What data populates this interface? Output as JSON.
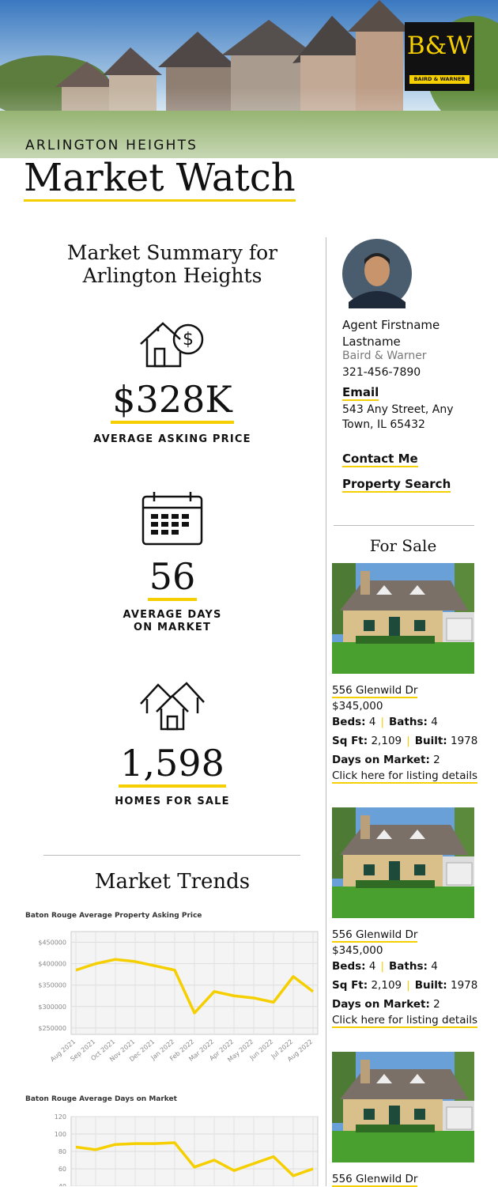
{
  "header": {
    "logo": "B&W",
    "logo_sub": "BAIRD & WARNER",
    "subtitle": "ARLINGTON HEIGHTS",
    "title": "Market Watch"
  },
  "summary": {
    "title": "Market Summary for Arlington Heights",
    "stats": [
      {
        "value": "$328K",
        "label": "AVERAGE ASKING PRICE"
      },
      {
        "value": "56",
        "label": "AVERAGE DAYS ON MARKET"
      },
      {
        "value": "1,598",
        "label": "HOMES FOR SALE"
      }
    ]
  },
  "trends_title": "Market Trends",
  "chart_data": [
    {
      "type": "line",
      "title": "Baton Rouge Average Property Asking Price",
      "categories": [
        "Aug 2021",
        "Sep 2021",
        "Oct 2021",
        "Nov 2021",
        "Dec 2021",
        "Jan 2022",
        "Feb 2022",
        "Mar 2022",
        "Apr 2022",
        "May 2022",
        "Jun 2022",
        "Jul 2022",
        "Aug 2022"
      ],
      "values": [
        385000,
        400000,
        410000,
        405000,
        395000,
        385000,
        285000,
        335000,
        325000,
        320000,
        310000,
        370000,
        335000
      ],
      "color": "#f5cf00",
      "ylim": [
        235000,
        475000
      ],
      "yticks": [
        {
          "value": 250000,
          "label": "$250000"
        },
        {
          "value": 300000,
          "label": "$300000"
        },
        {
          "value": 350000,
          "label": "$350000"
        },
        {
          "value": 400000,
          "label": "$400000"
        },
        {
          "value": 450000,
          "label": "$450000"
        }
      ],
      "grid": true
    },
    {
      "type": "line",
      "title": "Baton Rouge Average Days on Market",
      "categories": [
        null,
        null,
        null,
        null,
        null,
        null,
        null,
        null,
        null,
        null,
        null,
        null,
        null
      ],
      "values": [
        85,
        82,
        88,
        89,
        89,
        90,
        62,
        70,
        58,
        66,
        74,
        52,
        60
      ],
      "color": "#f5cf00",
      "ylim": [
        40,
        120
      ],
      "yticks": [
        40,
        60,
        80,
        100,
        120
      ],
      "grid": true
    }
  ],
  "agent": {
    "name": "Agent Firstname Lastname",
    "company": "Baird & Warner",
    "phone": "321-456-7890",
    "email": "Email",
    "address": "543 Any Street, Any Town, IL 65432",
    "links": [
      "Contact Me",
      "Property Search"
    ]
  },
  "for_sale": {
    "title": "For Sale",
    "listings": [
      {
        "address": "556 Glenwild Dr",
        "price": "$345,000",
        "beds_label": "Beds:",
        "beds": "4",
        "baths_label": "Baths:",
        "baths": "4",
        "sqft_label": "Sq Ft:",
        "sqft": "2,109",
        "built_label": "Built:",
        "built": "1978",
        "dom_label": "Days on Market:",
        "dom": "2",
        "link": "Click here for listing details"
      },
      {
        "address": "556 Glenwild Dr",
        "price": "$345,000",
        "beds_label": "Beds:",
        "beds": "4",
        "baths_label": "Baths:",
        "baths": "4",
        "sqft_label": "Sq Ft:",
        "sqft": "2,109",
        "built_label": "Built:",
        "built": "1978",
        "dom_label": "Days on Market:",
        "dom": "2",
        "link": "Click here for listing details"
      },
      {
        "address": "556 Glenwild Dr"
      }
    ]
  }
}
